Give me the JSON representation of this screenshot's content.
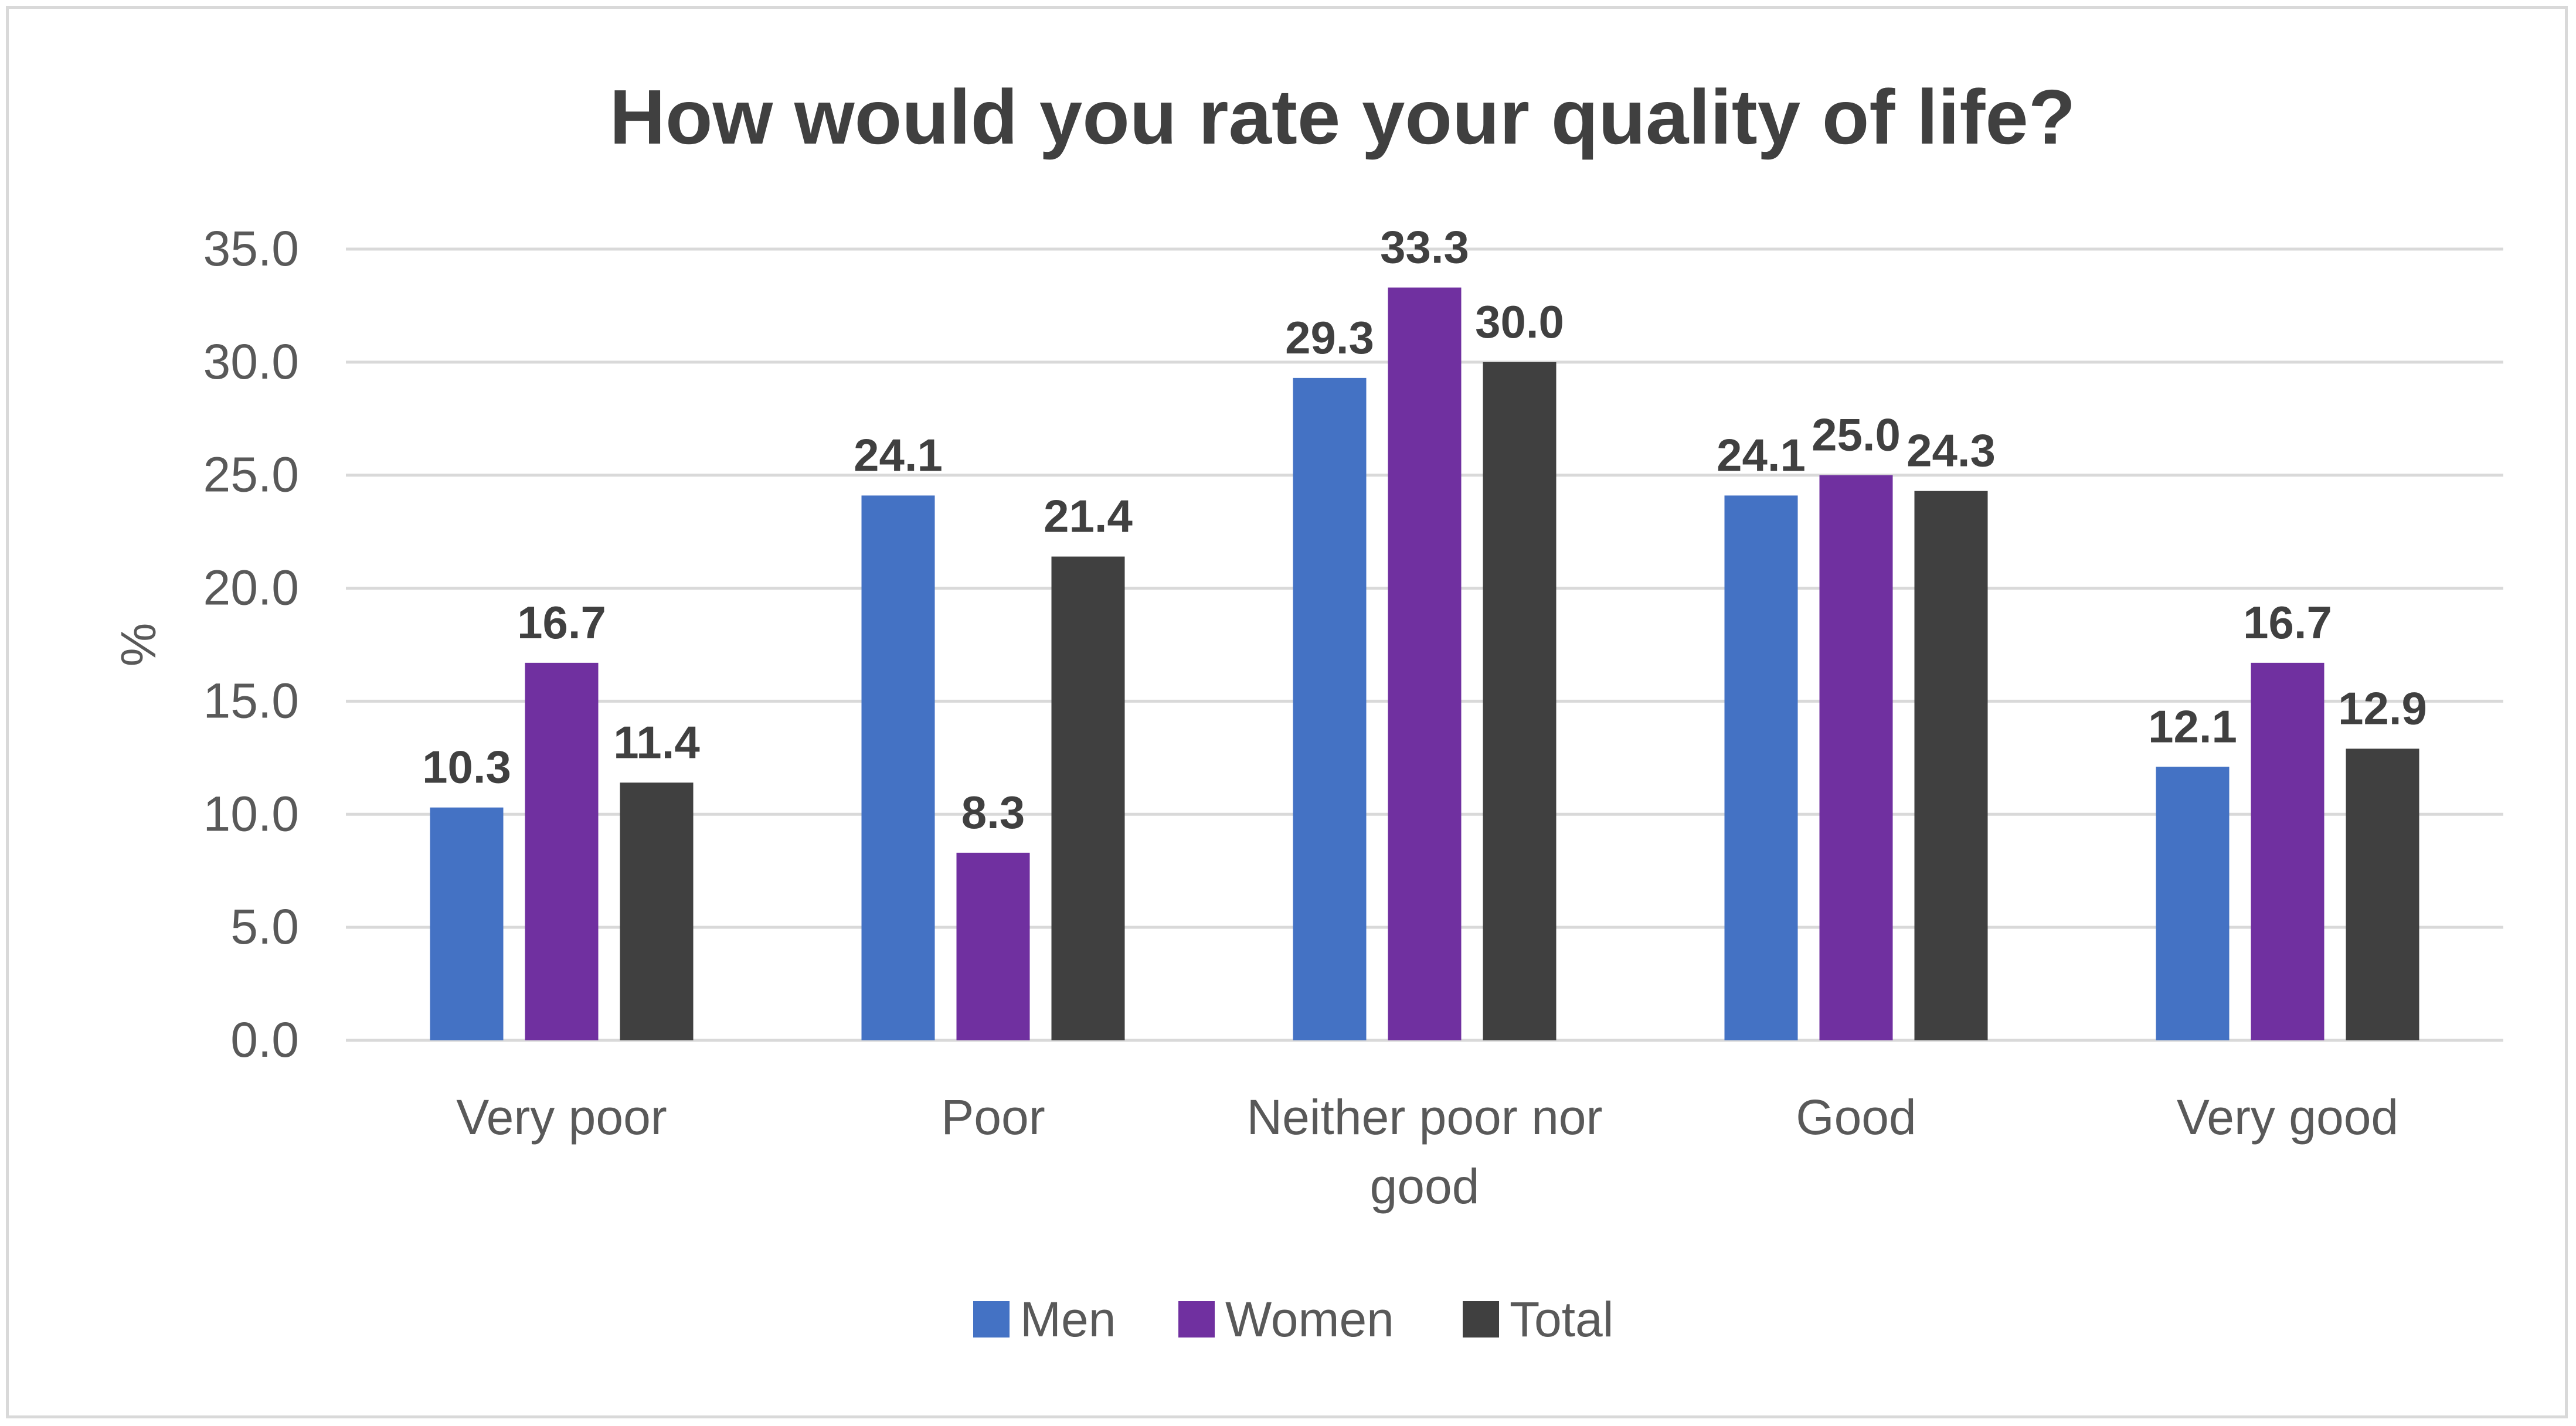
{
  "chart_data": {
    "type": "bar",
    "title": "How would you rate your quality of life?",
    "xlabel": "",
    "ylabel": "%",
    "ylim": [
      0,
      35
    ],
    "yticks": [
      "0.0",
      "5.0",
      "10.0",
      "15.0",
      "20.0",
      "25.0",
      "30.0",
      "35.0"
    ],
    "categories": [
      [
        "Very poor"
      ],
      [
        "Poor"
      ],
      [
        "Neither poor nor",
        "good"
      ],
      [
        "Good"
      ],
      [
        "Very good"
      ]
    ],
    "series": [
      {
        "name": "Men",
        "color": "#4472c4",
        "values": [
          10.3,
          24.1,
          29.3,
          24.1,
          12.1
        ],
        "labels": [
          "10.3",
          "24.1",
          "29.3",
          "24.1",
          "12.1"
        ]
      },
      {
        "name": "Women",
        "color": "#7030a0",
        "values": [
          16.7,
          8.3,
          33.3,
          25.0,
          16.7
        ],
        "labels": [
          "16.7",
          "8.3",
          "33.3",
          "25.0",
          "16.7"
        ]
      },
      {
        "name": "Total",
        "color": "#404040",
        "values": [
          11.4,
          21.4,
          30.0,
          24.3,
          12.9
        ],
        "labels": [
          "11.4",
          "21.4",
          "30.0",
          "24.3",
          "12.9"
        ]
      }
    ],
    "legend_position": "bottom",
    "grid": true
  }
}
